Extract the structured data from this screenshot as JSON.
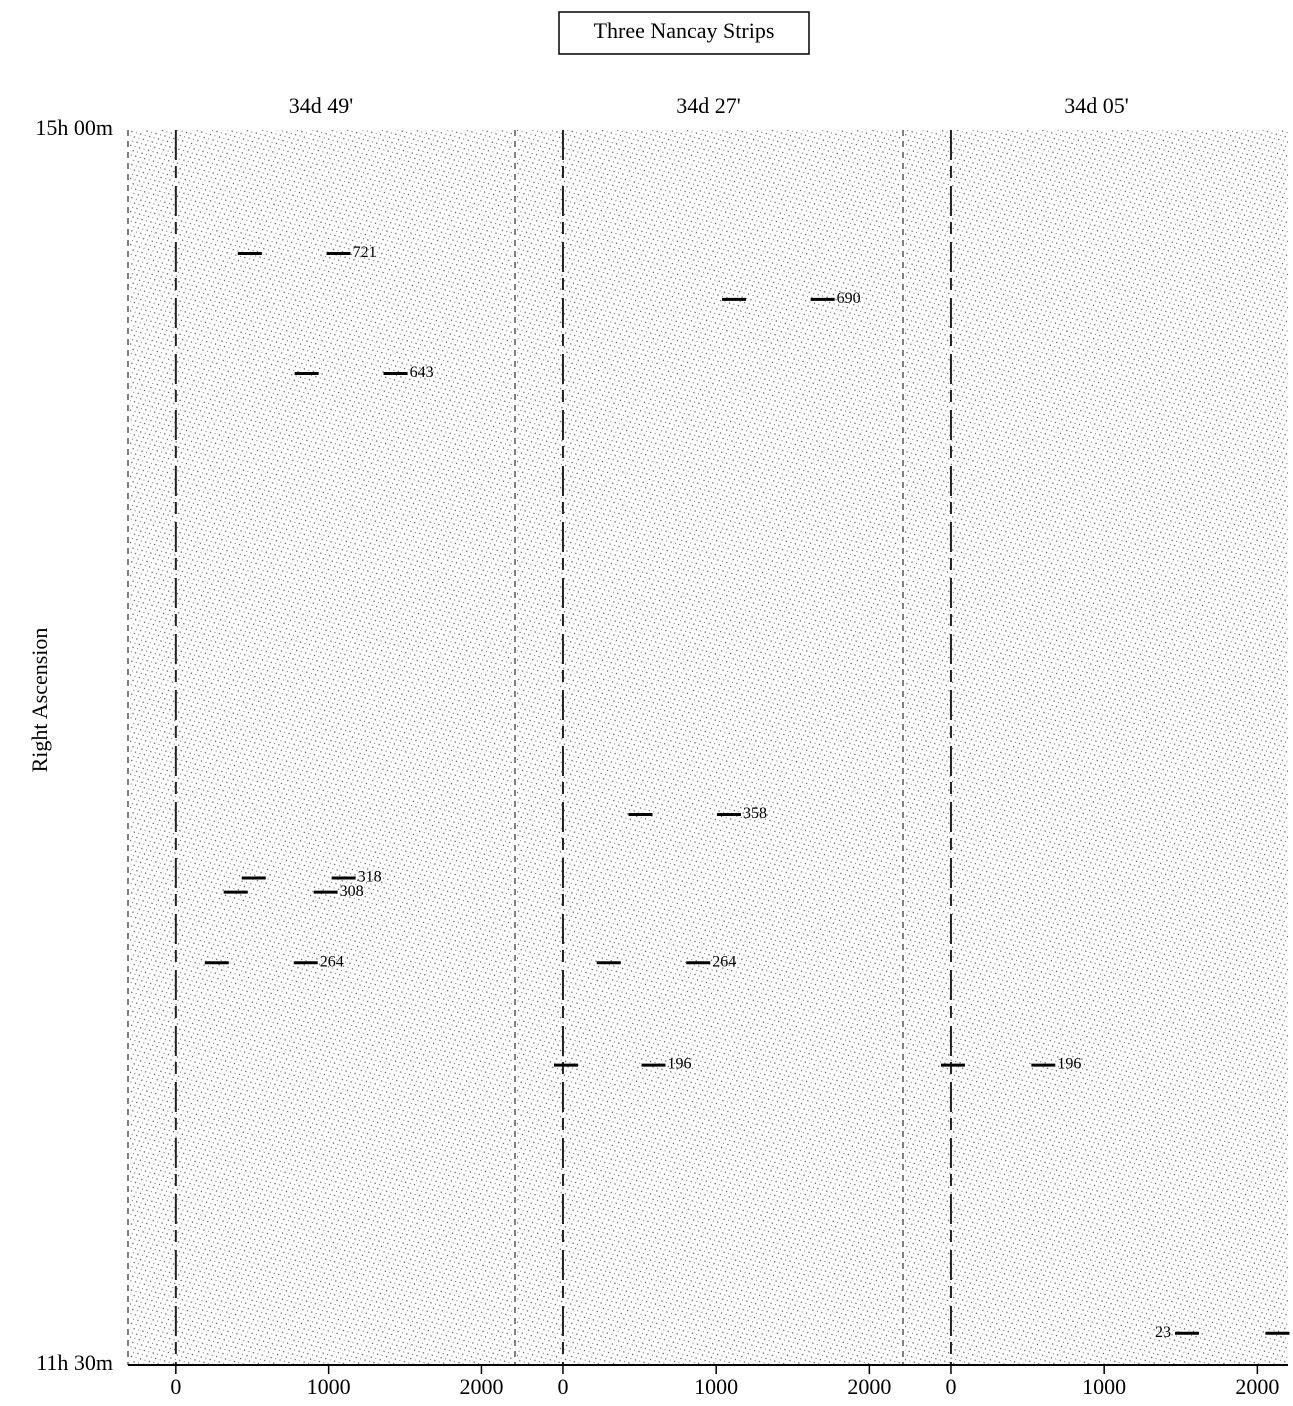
{
  "figure": {
    "title": "Three Nancay Strips",
    "ylabel": "Right Ascension",
    "ylim": [
      15.0,
      11.5
    ],
    "yticks": [
      {
        "value": 15.0,
        "label": "15h 00m"
      },
      {
        "value": 11.5,
        "label": "11h 30m"
      }
    ]
  },
  "chart_data": [
    {
      "type": "strip",
      "title": "34d 49'",
      "xlim": [
        -300,
        2200
      ],
      "xticks": [
        0,
        1000,
        2000
      ],
      "features": [
        {
          "label": 721,
          "x": [
            484,
            1065
          ],
          "y": 14.65
        },
        {
          "label": 643,
          "x": [
            856,
            1438
          ],
          "y": 14.31
        },
        {
          "label": 318,
          "x": [
            510,
            1098
          ],
          "y": 12.88
        },
        {
          "label": 308,
          "x": [
            392,
            980
          ],
          "y": 12.84
        },
        {
          "label": 264,
          "x": [
            268,
            850
          ],
          "y": 12.64
        }
      ]
    },
    {
      "type": "strip",
      "title": "34d 27'",
      "xlim": [
        -300,
        2200
      ],
      "xticks": [
        0,
        1000,
        2000
      ],
      "features": [
        {
          "label": 690,
          "x": [
            1117,
            1695
          ],
          "y": 14.52
        },
        {
          "label": 358,
          "x": [
            506,
            1084
          ],
          "y": 13.06
        },
        {
          "label": 264,
          "x": [
            299,
            883
          ],
          "y": 12.64
        },
        {
          "label": 196,
          "x": [
            20,
            591
          ],
          "y": 12.35
        }
      ]
    },
    {
      "type": "strip",
      "title": "34d 05'",
      "xlim": [
        -300,
        2200
      ],
      "xticks": [
        0,
        1000,
        2000
      ],
      "features": [
        {
          "label": 196,
          "x": [
            13,
            603
          ],
          "y": 12.35
        },
        {
          "label": 23,
          "x": [
            1541,
            2131
          ],
          "y": 11.59
        }
      ]
    }
  ]
}
